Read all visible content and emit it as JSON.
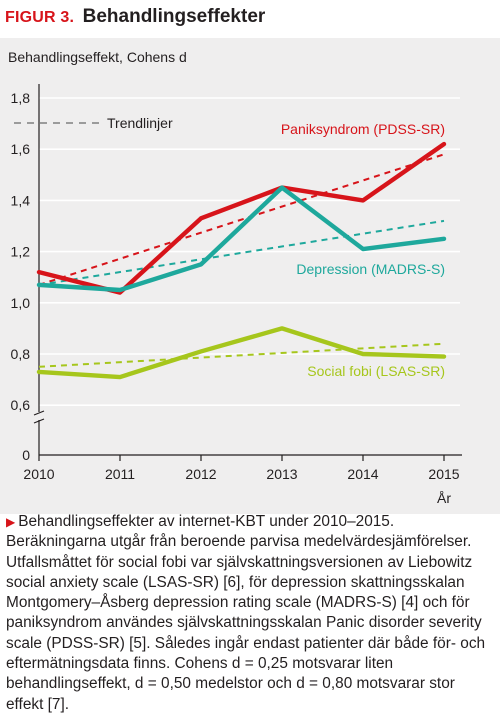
{
  "figure": {
    "label": "FIGUR 3.",
    "title": "Behandlingseffekter",
    "caption_marker": "▶",
    "caption": "Behandlingseffekter av internet-KBT under 2010–2015. Beräkningarna utgår från beroende parvisa medelvärdesjämförelser. Utfallsmåttet för social fobi var självskattningsversionen av Liebowitz social anxiety scale (LSAS-SR) [6], för depression skattningsskalan Montgomery–Åsberg depression rating scale (MADRS-S) [4] och för paniksyndrom användes självskattningsskalan Panic disorder severity scale (PDSS-SR) [5]. Således ingår endast patienter där både för- och eftermätningsdata finns. Cohens d = 0,25 motsvarar liten behandlingseffekt, d = 0,50 medelstor och d = 0,80 motsvarar stor effekt [7]."
  },
  "chart_data": {
    "type": "line",
    "ylabel": "Behandlingseffekt, Cohens d",
    "xlabel": "År",
    "x": [
      2010,
      2011,
      2012,
      2013,
      2014,
      2015
    ],
    "x_tick_labels": [
      "2010",
      "2011",
      "2012",
      "2013",
      "2014",
      "2015"
    ],
    "ylim": [
      0,
      1.8
    ],
    "y_ticks": [
      0,
      0.6,
      0.8,
      1.0,
      1.2,
      1.4,
      1.6,
      1.8
    ],
    "y_tick_labels": [
      "0",
      "0,6",
      "0,8",
      "1,0",
      "1,2",
      "1,4",
      "1,6",
      "1,8"
    ],
    "axis_break": true,
    "grid": "horizontal",
    "legend": {
      "label": "Trendlinjer",
      "style": "dashed",
      "color": "#9b9b9b",
      "placement": "top-left"
    },
    "series": [
      {
        "name": "Paniksyndrom (PDSS-SR)",
        "color": "#d7141a",
        "values": [
          1.12,
          1.04,
          1.33,
          1.45,
          1.4,
          1.62
        ],
        "trend": [
          1.07,
          1.58
        ]
      },
      {
        "name": "Depression (MADRS-S)",
        "color": "#1ea89c",
        "values": [
          1.07,
          1.05,
          1.15,
          1.45,
          1.21,
          1.25
        ],
        "trend": [
          1.07,
          1.32
        ]
      },
      {
        "name": "Social fobi (LSAS-SR)",
        "color": "#a6c61c",
        "values": [
          0.73,
          0.71,
          0.81,
          0.9,
          0.8,
          0.79
        ],
        "trend": [
          0.75,
          0.84
        ]
      }
    ]
  }
}
